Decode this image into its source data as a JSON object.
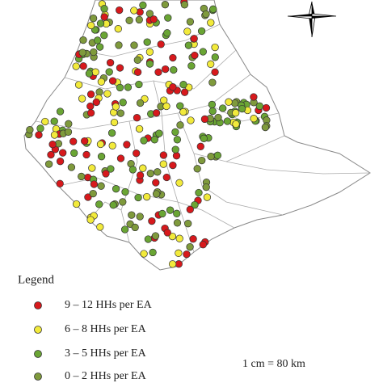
{
  "legend": {
    "title": "Legend",
    "items": [
      {
        "label": "9 – 12 HHs per EA",
        "color": "#d7191c"
      },
      {
        "label": "6 – 8 HHs per EA",
        "color": "#f2ea3b"
      },
      {
        "label": "3 – 5 HHs per EA",
        "color": "#6aa534"
      },
      {
        "label": "0 – 2 HHs per EA",
        "color": "#7f9a3c"
      }
    ]
  },
  "scale": "1 cm = 80 km"
}
